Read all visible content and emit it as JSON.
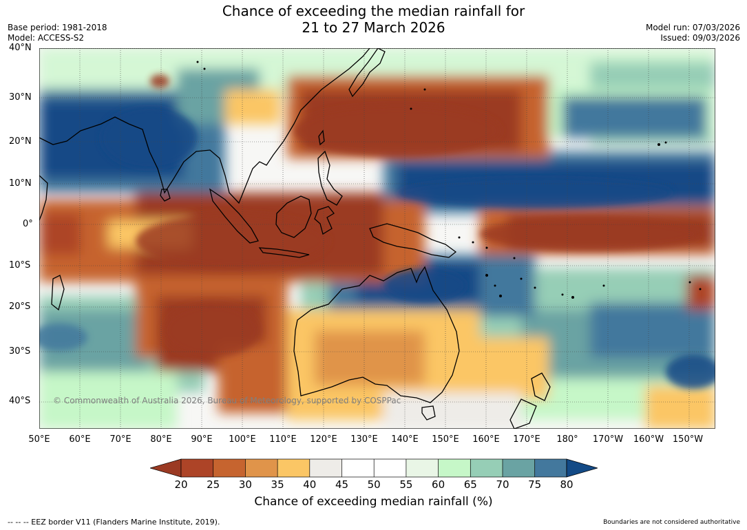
{
  "header": {
    "title_line1": "Chance of exceeding the median rainfall for",
    "title_line2": "21 to 27 March 2026",
    "base_period": "Base period: 1981-2018",
    "model": "Model: ACCESS-S2",
    "model_run": "Model run: 07/03/2026",
    "issued": "Issued: 09/03/2026"
  },
  "axes": {
    "lat_labels": [
      "40°N",
      "30°N",
      "20°N",
      "10°N",
      "0°",
      "10°S",
      "20°S",
      "30°S",
      "40°S"
    ],
    "lon_labels": [
      "50°E",
      "60°E",
      "70°E",
      "80°E",
      "90°E",
      "100°E",
      "110°E",
      "120°E",
      "130°E",
      "140°E",
      "150°E",
      "160°E",
      "170°E",
      "180°",
      "170°W",
      "160°W",
      "150°W"
    ]
  },
  "map": {
    "copyright": "© Commonwealth of Australia 2026, Bureau of Meteorology, supported by COSPPac"
  },
  "legend": {
    "ticks": [
      "20",
      "25",
      "30",
      "35",
      "40",
      "45",
      "50",
      "55",
      "60",
      "65",
      "70",
      "75",
      "80"
    ],
    "label": "Chance of exceeding median rainfall (%)",
    "colors": {
      "lt20": "#9b3a23",
      "20-25": "#ad4427",
      "25-30": "#c6642f",
      "30-35": "#e0944a",
      "35-40": "#fbc665",
      "40-45": "#eeece8",
      "45-50": "#ffffff",
      "50-55": "#ffffff",
      "55-60": "#e9f6e6",
      "60-65": "#c6f7c8",
      "65-70": "#96ceb6",
      "70-75": "#6aa3a3",
      "75-80": "#43789d",
      "gt80": "#134a86"
    }
  },
  "footer": {
    "eez": "--  --  -- EEZ border V11 (Flanders Marine Institute, 2019).",
    "boundaries": "Boundaries are not considered authoritative"
  }
}
